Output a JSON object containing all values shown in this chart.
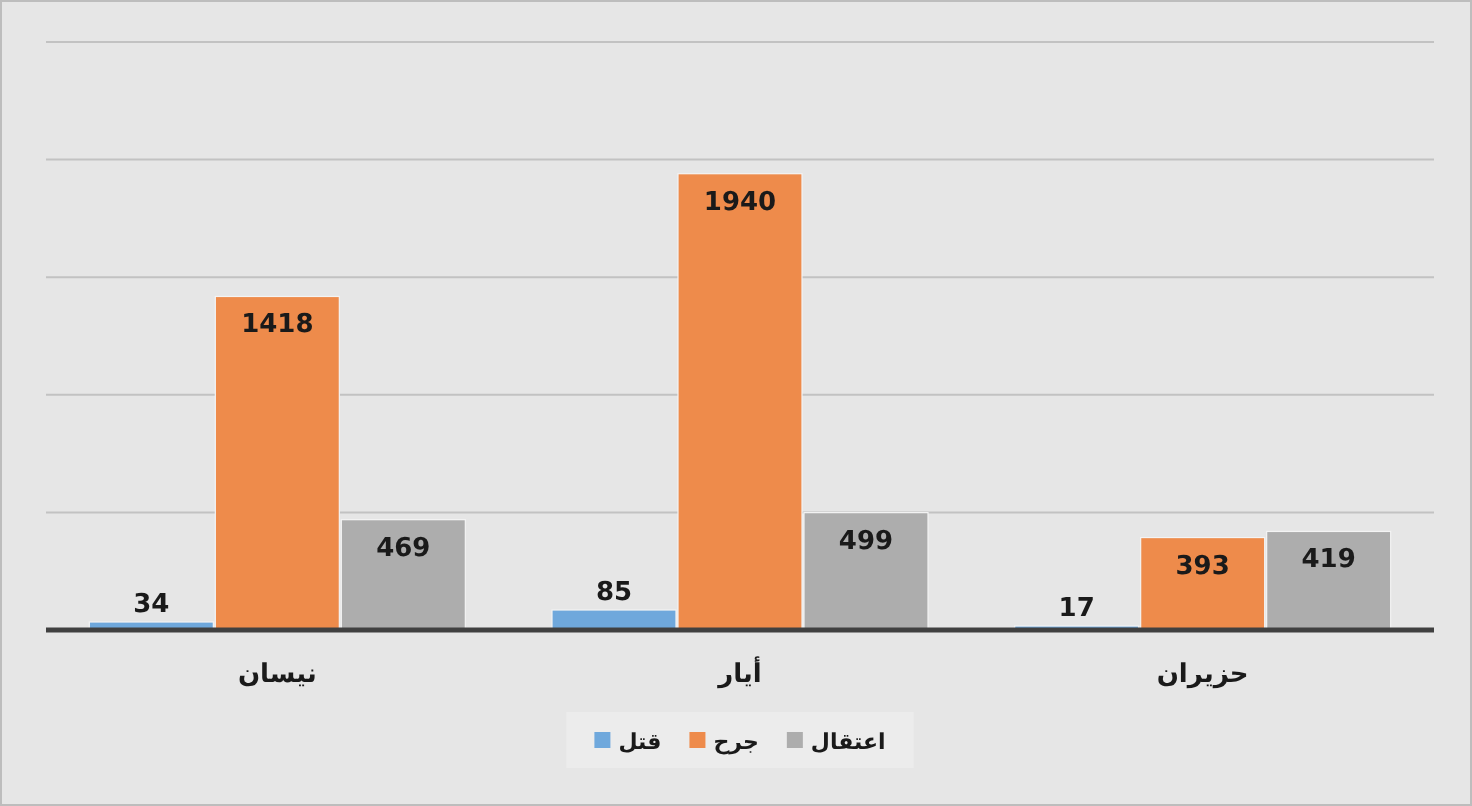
{
  "chart_data": {
    "type": "bar",
    "categories": [
      "نيسان",
      "أيار",
      "حزيران"
    ],
    "series": [
      {
        "name": "قتل",
        "color": "#6fa8dc",
        "values": [
          34,
          85,
          17
        ]
      },
      {
        "name": "جرح",
        "color": "#ee8b4b",
        "values": [
          1418,
          1940,
          393
        ]
      },
      {
        "name": "اعتقال",
        "color": "#adadad",
        "values": [
          469,
          499,
          419
        ]
      }
    ],
    "ylim": [
      0,
      2500
    ],
    "yticks": [
      {
        "value": 0,
        "label": null
      },
      {
        "value": 500,
        "label": null
      },
      {
        "value": 1000,
        "label": null
      },
      {
        "value": 1500,
        "label": null
      },
      {
        "value": 2000,
        "label": null
      },
      {
        "value": 2500,
        "label": null
      }
    ],
    "grid": "y",
    "legend": "bottom",
    "tick_labels": "x",
    "data_labels": true
  }
}
